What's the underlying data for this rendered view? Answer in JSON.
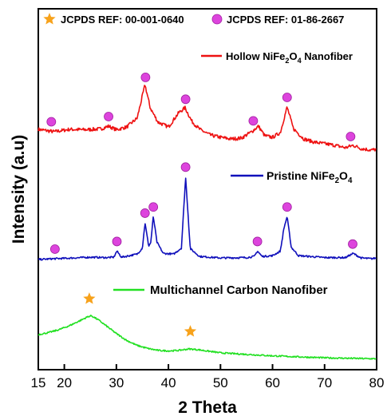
{
  "chart_data": {
    "type": "line",
    "xlabel": "2 Theta",
    "ylabel": "Intensity (a.u)",
    "xlim": [
      15,
      80
    ],
    "xticks": [
      15,
      20,
      30,
      40,
      50,
      60,
      70,
      80
    ],
    "y_ticks_shown": false,
    "grid": false,
    "colors": {
      "hollow": "#ee1111",
      "pristine": "#1010bb",
      "carbon": "#22e022",
      "circle_marker": "#dd44dd",
      "star_marker": "#f7a21b"
    },
    "reference_legend": [
      {
        "marker": "star",
        "label": "JCPDS REF: 00-001-0640"
      },
      {
        "marker": "circle",
        "label": "JCPDS REF: 01-86-2667"
      }
    ],
    "series": [
      {
        "name": "Hollow NiFe2O4 Nanofiber",
        "label_parts": [
          "Hollow NiFe",
          "2",
          "O",
          "4",
          " Nanofiber"
        ],
        "color": "hollow",
        "x": [
          15,
          18,
          21,
          24,
          27,
          28.5,
          30,
          32,
          34,
          35.5,
          36.5,
          38,
          40,
          42,
          43.2,
          44.5,
          46,
          48,
          50,
          52,
          54,
          56,
          57.3,
          58.5,
          60,
          61.5,
          62.8,
          64,
          66,
          68,
          70,
          72,
          74,
          75.5,
          77,
          79,
          80
        ],
        "y": [
          0.56,
          0.5,
          0.56,
          0.55,
          0.57,
          0.64,
          0.55,
          0.62,
          0.84,
          1.68,
          1.1,
          0.74,
          0.62,
          0.98,
          1.1,
          0.76,
          0.56,
          0.42,
          0.36,
          0.32,
          0.34,
          0.5,
          0.64,
          0.4,
          0.36,
          0.48,
          1.12,
          0.58,
          0.32,
          0.24,
          0.2,
          0.16,
          0.1,
          0.16,
          0.08,
          0.04,
          0.06
        ]
      },
      {
        "name": "Pristine NiFe2O4",
        "label_parts": [
          "Pristine NiFe",
          "2",
          "O",
          "4",
          ""
        ],
        "color": "pristine",
        "x": [
          15,
          18,
          20,
          25,
          28,
          29.5,
          30.1,
          31,
          34,
          35,
          35.5,
          36.2,
          36.6,
          37.1,
          37.8,
          39,
          41,
          42.5,
          43.3,
          44.2,
          46,
          50,
          55,
          56.5,
          57.1,
          58,
          60,
          61.5,
          62.2,
          62.8,
          63.6,
          65,
          70,
          74,
          75.5,
          77,
          79,
          80
        ],
        "y": [
          0.0,
          0.02,
          0.03,
          0.06,
          0.05,
          0.06,
          0.22,
          0.06,
          0.14,
          0.3,
          0.96,
          0.35,
          0.44,
          1.12,
          0.45,
          0.16,
          0.14,
          0.3,
          2.16,
          0.28,
          0.08,
          0.04,
          0.05,
          0.08,
          0.22,
          0.08,
          0.1,
          0.22,
          0.82,
          1.12,
          0.32,
          0.1,
          0.05,
          0.05,
          0.16,
          0.04,
          0.02,
          0.04
        ]
      },
      {
        "name": "Multichannel Carbon Nanofiber",
        "label_parts": [
          "Multichannel Carbon Nanofiber",
          "",
          "",
          "",
          ""
        ],
        "color": "carbon",
        "x": [
          15,
          17,
          19,
          21,
          23,
          24.5,
          25.2,
          26.5,
          28,
          30,
          32,
          34,
          36,
          38,
          40,
          42,
          44,
          46,
          48,
          50,
          55,
          60,
          65,
          70,
          75,
          80
        ],
        "y": [
          0.5,
          0.54,
          0.6,
          0.68,
          0.78,
          0.86,
          0.88,
          0.8,
          0.68,
          0.52,
          0.38,
          0.28,
          0.22,
          0.18,
          0.17,
          0.18,
          0.21,
          0.19,
          0.16,
          0.13,
          0.1,
          0.07,
          0.05,
          0.03,
          0.02,
          0.01
        ]
      }
    ],
    "circle_markers": {
      "Hollow NiFe2O4 Nanofiber": [
        17.5,
        28.5,
        35.6,
        43.3,
        56.3,
        62.8,
        75
      ],
      "Pristine NiFe2O4": [
        18.2,
        30.1,
        35.5,
        37.1,
        43.3,
        57.1,
        62.8,
        75.4
      ]
    },
    "star_markers": {
      "Multichannel Carbon Nanofiber": [
        24.8,
        44.2
      ]
    }
  }
}
